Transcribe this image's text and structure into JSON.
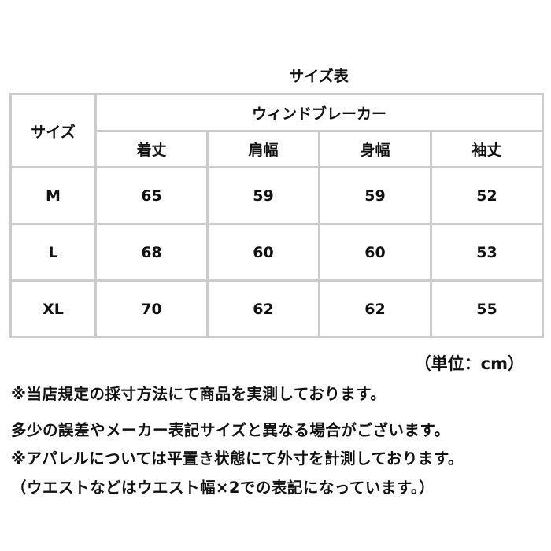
{
  "title": "サイズ表",
  "table": {
    "size_header": "サイズ",
    "product_header": "ウィンドブレーカー",
    "columns": [
      "着丈",
      "肩幅",
      "身幅",
      "袖丈"
    ],
    "rows": [
      {
        "size": "M",
        "values": [
          "65",
          "59",
          "59",
          "52"
        ]
      },
      {
        "size": "L",
        "values": [
          "68",
          "60",
          "60",
          "53"
        ]
      },
      {
        "size": "XL",
        "values": [
          "70",
          "62",
          "62",
          "55"
        ]
      }
    ]
  },
  "unit": "（単位：cm）",
  "notes": [
    "※当店規定の採寸方法にて商品を実測しております。",
    "多少の誤差やメーカー表記サイズと異なる場合がございます。",
    "※アパレルについては平置き状態にて外寸を計測しております。",
    "（ウエストなどはウエスト幅×2での表記になっています。）"
  ]
}
